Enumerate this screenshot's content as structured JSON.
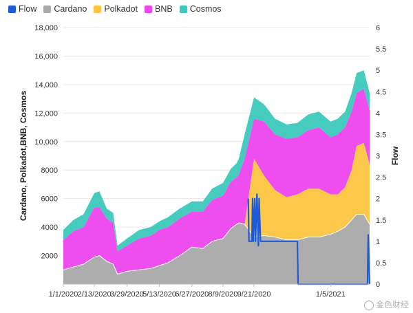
{
  "legend": {
    "items": [
      {
        "name": "Flow",
        "color": "#1f5bd6"
      },
      {
        "name": "Cardano",
        "color": "#a9a9a9"
      },
      {
        "name": "Polkadot",
        "color": "#fcc540"
      },
      {
        "name": "BNB",
        "color": "#ee44ee"
      },
      {
        "name": "Cosmos",
        "color": "#3cc8bc"
      }
    ]
  },
  "watermark": {
    "text": "金色财经"
  },
  "chart_data": {
    "type": "area",
    "xlabel": "",
    "ylabel_left": "Cardano, Polkadot,BNB, Cosmos",
    "ylabel_right": "Flow",
    "ylim_left": [
      0,
      18000
    ],
    "ylim_right": [
      0,
      6
    ],
    "y_ticks_left": [
      "2000",
      "4000",
      "6000",
      "8000",
      "10,000",
      "12,000",
      "14,000",
      "16,000",
      "18,000"
    ],
    "y_ticks_right": [
      "0",
      "0.5",
      "1",
      "1.5",
      "2",
      "2.5",
      "3",
      "3.5",
      "4",
      "4.5",
      "5",
      "5.5",
      "6"
    ],
    "x_ticks": [
      "1/1/2020",
      "2/13/2020",
      "3/29/2020",
      "5/13/2020",
      "6/27/2020",
      "8/9/2020",
      "9/21/2020",
      "1/5/2021"
    ],
    "x": [
      "1/1/2020",
      "1/15/2020",
      "1/29/2020",
      "2/13/2020",
      "2/20/2020",
      "3/1/2020",
      "3/10/2020",
      "3/16/2020",
      "3/29/2020",
      "4/15/2020",
      "5/1/2020",
      "5/13/2020",
      "5/25/2020",
      "6/10/2020",
      "6/27/2020",
      "7/12/2020",
      "7/25/2020",
      "8/9/2020",
      "8/20/2020",
      "8/28/2020",
      "8/31/2020",
      "9/8/2020",
      "9/21/2020",
      "10/5/2020",
      "10/20/2020",
      "11/5/2020",
      "11/20/2020",
      "12/5/2020",
      "12/20/2020",
      "1/5/2021",
      "1/15/2021",
      "1/25/2021",
      "2/3/2021",
      "2/10/2021",
      "2/20/2021",
      "2/28/2021"
    ],
    "stack_order": [
      "Cardano",
      "Polkadot",
      "BNB",
      "Cosmos"
    ],
    "series": [
      {
        "name": "Cardano",
        "color": "#a9a9a9",
        "values": [
          1000,
          1200,
          1400,
          1900,
          2000,
          1600,
          1400,
          700,
          900,
          1000,
          1100,
          1300,
          1500,
          2000,
          2600,
          2500,
          3000,
          3200,
          3900,
          4200,
          4300,
          4200,
          3300,
          3400,
          3300,
          3100,
          3100,
          3300,
          3300,
          3500,
          3700,
          4000,
          4500,
          4900,
          4900,
          4200
        ]
      },
      {
        "name": "Polkadot",
        "color": "#fcc540",
        "values": [
          0,
          0,
          0,
          0,
          0,
          0,
          0,
          0,
          0,
          0,
          0,
          0,
          0,
          0,
          0,
          0,
          0,
          0,
          0,
          0,
          0,
          0,
          5500,
          4200,
          3300,
          3000,
          3200,
          3400,
          3400,
          2800,
          2600,
          2800,
          3500,
          4800,
          5000,
          4200
        ]
      },
      {
        "name": "BNB",
        "color": "#ee44ee",
        "values": [
          2100,
          2500,
          2600,
          3500,
          3400,
          3000,
          2900,
          1600,
          1800,
          2200,
          2300,
          2500,
          2500,
          2600,
          2500,
          2600,
          2900,
          3000,
          3300,
          3300,
          3400,
          4600,
          2800,
          3800,
          3900,
          4100,
          4000,
          4100,
          4300,
          4000,
          4200,
          4200,
          4100,
          3700,
          3800,
          3800
        ]
      },
      {
        "name": "Cosmos",
        "color": "#3cc8bc",
        "values": [
          700,
          800,
          900,
          1000,
          1100,
          700,
          700,
          400,
          500,
          600,
          600,
          600,
          700,
          700,
          700,
          700,
          800,
          900,
          900,
          1000,
          1100,
          1700,
          1500,
          1200,
          1100,
          1000,
          1000,
          1100,
          1100,
          1100,
          1100,
          1100,
          1300,
          1400,
          1300,
          1200
        ]
      }
    ],
    "flow": {
      "name": "Flow",
      "color": "#1f5bd6",
      "points": [
        [
          "9/13/2020",
          2.0
        ],
        [
          "9/14/2020",
          1.0
        ],
        [
          "9/18/2020",
          1.0
        ],
        [
          "9/19/2020",
          2.0
        ],
        [
          "9/20/2020",
          1.0
        ],
        [
          "9/22/2020",
          2.0
        ],
        [
          "9/23/2020",
          1.0
        ],
        [
          "9/25/2020",
          2.1
        ],
        [
          "9/27/2020",
          0.9
        ],
        [
          "9/28/2020",
          2.0
        ],
        [
          "9/30/2020",
          1.0
        ],
        [
          "11/20/2020",
          1.0
        ],
        [
          "11/21/2020",
          0.0
        ],
        [
          "2/25/2021",
          0.0
        ],
        [
          "2/26/2021",
          1.15
        ],
        [
          "2/28/2021",
          0.0
        ]
      ]
    }
  }
}
